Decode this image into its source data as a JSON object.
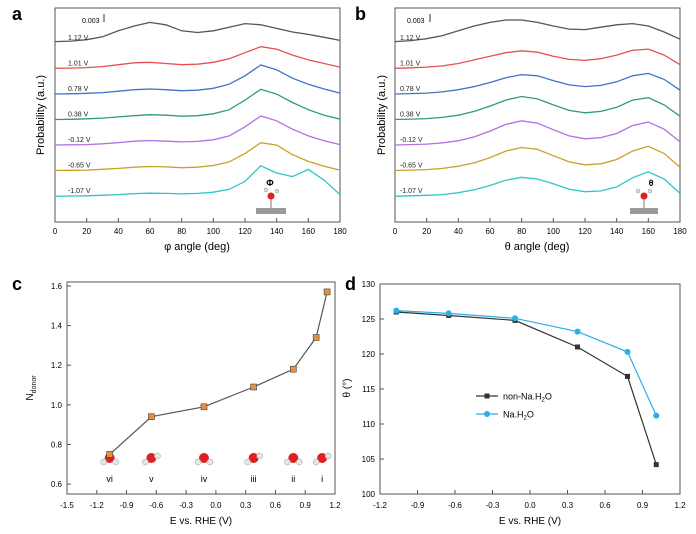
{
  "chart_data": [
    {
      "panel": "a",
      "type": "line",
      "title": "",
      "xlabel": "φ angle (deg)",
      "ylabel": "Probability (a.u.)",
      "xlim": [
        0,
        180
      ],
      "xticks": [
        "0",
        "20",
        "40",
        "60",
        "80",
        "100",
        "120",
        "140",
        "160",
        "180"
      ],
      "scale_bar_label": "0.003",
      "inset_symbol": "Φ",
      "x": [
        0,
        10,
        20,
        30,
        40,
        50,
        60,
        70,
        80,
        90,
        100,
        110,
        120,
        130,
        140,
        150,
        160,
        170,
        180
      ],
      "series": [
        {
          "name": "1.12 V",
          "color": "#555555",
          "values": [
            0.1,
            0.12,
            0.18,
            0.3,
            0.55,
            0.75,
            0.9,
            0.8,
            0.55,
            0.48,
            0.55,
            0.7,
            0.85,
            0.8,
            0.65,
            0.5,
            0.4,
            0.28,
            0.15
          ]
        },
        {
          "name": "1.01 V",
          "color": "#e8504f",
          "values": [
            0.05,
            0.06,
            0.08,
            0.12,
            0.2,
            0.28,
            0.3,
            0.25,
            0.2,
            0.22,
            0.3,
            0.45,
            0.7,
            0.95,
            0.85,
            0.6,
            0.4,
            0.25,
            0.1
          ]
        },
        {
          "name": "0.78 V",
          "color": "#3f72c9",
          "values": [
            0.04,
            0.05,
            0.07,
            0.1,
            0.16,
            0.22,
            0.25,
            0.22,
            0.18,
            0.2,
            0.28,
            0.45,
            0.8,
            1.25,
            1.05,
            0.7,
            0.45,
            0.25,
            0.08
          ]
        },
        {
          "name": "0.38 V",
          "color": "#2e9e6c",
          "values": [
            0.04,
            0.05,
            0.07,
            0.1,
            0.15,
            0.2,
            0.24,
            0.22,
            0.18,
            0.2,
            0.28,
            0.45,
            0.85,
            1.3,
            1.1,
            0.75,
            0.45,
            0.22,
            0.06
          ]
        },
        {
          "name": "-0.12 V",
          "color": "#b36ee0",
          "values": [
            0.04,
            0.05,
            0.06,
            0.09,
            0.14,
            0.2,
            0.23,
            0.2,
            0.17,
            0.19,
            0.26,
            0.42,
            0.8,
            1.25,
            1.05,
            0.7,
            0.42,
            0.22,
            0.06
          ]
        },
        {
          "name": "-0.65 V",
          "color": "#c9a12a",
          "values": [
            0.04,
            0.05,
            0.06,
            0.09,
            0.13,
            0.18,
            0.21,
            0.19,
            0.16,
            0.18,
            0.25,
            0.4,
            0.75,
            1.2,
            1.1,
            0.7,
            0.42,
            0.22,
            0.06
          ]
        },
        {
          "name": "-1.07 V",
          "color": "#2fc6c6",
          "values": [
            0.03,
            0.04,
            0.05,
            0.07,
            0.1,
            0.14,
            0.16,
            0.15,
            0.13,
            0.15,
            0.2,
            0.32,
            0.65,
            1.3,
            1.0,
            0.85,
            1.15,
            0.7,
            0.1
          ]
        }
      ]
    },
    {
      "panel": "b",
      "type": "line",
      "title": "",
      "xlabel": "θ angle (deg)",
      "ylabel": "Probability (a.u.)",
      "xlim": [
        0,
        180
      ],
      "xticks": [
        "0",
        "20",
        "40",
        "60",
        "80",
        "100",
        "120",
        "140",
        "160",
        "180"
      ],
      "scale_bar_label": "0.003",
      "inset_symbol": "θ",
      "x": [
        0,
        10,
        20,
        30,
        40,
        50,
        60,
        70,
        80,
        90,
        100,
        110,
        120,
        130,
        140,
        150,
        160,
        170,
        180
      ],
      "series": [
        {
          "name": "1.12 V",
          "color": "#555555",
          "values": [
            0.1,
            0.14,
            0.22,
            0.35,
            0.55,
            0.75,
            0.9,
            1.0,
            1.0,
            0.9,
            0.75,
            0.62,
            0.6,
            0.7,
            0.8,
            0.85,
            0.75,
            0.5,
            0.2
          ]
        },
        {
          "name": "1.01 V",
          "color": "#e8504f",
          "values": [
            0.05,
            0.07,
            0.1,
            0.15,
            0.25,
            0.4,
            0.55,
            0.7,
            0.78,
            0.72,
            0.55,
            0.42,
            0.38,
            0.45,
            0.6,
            0.8,
            0.85,
            0.6,
            0.2
          ]
        },
        {
          "name": "0.78 V",
          "color": "#3f72c9",
          "values": [
            0.04,
            0.06,
            0.08,
            0.13,
            0.22,
            0.35,
            0.52,
            0.72,
            0.85,
            0.8,
            0.6,
            0.42,
            0.35,
            0.4,
            0.55,
            0.8,
            0.9,
            0.65,
            0.2
          ]
        },
        {
          "name": "0.38 V",
          "color": "#2e9e6c",
          "values": [
            0.04,
            0.06,
            0.08,
            0.13,
            0.22,
            0.38,
            0.6,
            0.85,
            1.0,
            0.9,
            0.65,
            0.42,
            0.32,
            0.38,
            0.55,
            0.85,
            0.95,
            0.65,
            0.18
          ]
        },
        {
          "name": "-0.12 V",
          "color": "#b36ee0",
          "values": [
            0.04,
            0.06,
            0.08,
            0.13,
            0.22,
            0.38,
            0.62,
            0.9,
            1.05,
            0.95,
            0.68,
            0.42,
            0.3,
            0.35,
            0.52,
            0.85,
            1.0,
            0.7,
            0.18
          ]
        },
        {
          "name": "-0.65 V",
          "color": "#c9a12a",
          "values": [
            0.04,
            0.06,
            0.08,
            0.13,
            0.22,
            0.36,
            0.58,
            0.85,
            1.0,
            0.92,
            0.66,
            0.4,
            0.28,
            0.32,
            0.5,
            0.85,
            1.05,
            0.75,
            0.18
          ]
        },
        {
          "name": "-1.07 V",
          "color": "#2fc6c6",
          "values": [
            0.03,
            0.05,
            0.07,
            0.1,
            0.18,
            0.3,
            0.48,
            0.7,
            0.82,
            0.75,
            0.55,
            0.32,
            0.22,
            0.25,
            0.42,
            0.8,
            1.05,
            0.75,
            0.15
          ]
        }
      ]
    },
    {
      "panel": "c",
      "type": "line",
      "xlabel": "E vs. RHE (V)",
      "ylabel": "N_donor",
      "ylabel_main": "N",
      "ylabel_sub": "donor",
      "xlim": [
        -1.5,
        1.2
      ],
      "ylim": [
        0.55,
        1.62
      ],
      "xticks": [
        -1.5,
        -1.2,
        -0.9,
        -0.6,
        -0.3,
        0.0,
        0.3,
        0.6,
        0.9,
        1.2
      ],
      "xtick_labels": [
        "-1.5",
        "-1.2",
        "-0.9",
        "-0.6",
        "-0.3",
        "0.0",
        "0.3",
        "0.6",
        "0.9",
        "1.2"
      ],
      "yticks": [
        0.6,
        0.8,
        1.0,
        1.2,
        1.4,
        1.6
      ],
      "ytick_labels": [
        "0.6",
        "0.8",
        "1.0",
        "1.2",
        "1.4",
        "1.6"
      ],
      "marker_color": "#e8913a",
      "x": [
        -1.07,
        -0.65,
        -0.12,
        0.38,
        0.78,
        1.01,
        1.12
      ],
      "y": [
        0.75,
        0.94,
        0.99,
        1.09,
        1.18,
        1.34,
        1.57
      ],
      "molecule_labels": [
        {
          "label": "vi",
          "x": -1.07
        },
        {
          "label": "v",
          "x": -0.65
        },
        {
          "label": "iv",
          "x": -0.12
        },
        {
          "label": "iii",
          "x": 0.38
        },
        {
          "label": "ii",
          "x": 0.78
        },
        {
          "label": "i",
          "x": 1.07
        }
      ]
    },
    {
      "panel": "d",
      "type": "line",
      "xlabel": "E vs. RHE (V)",
      "ylabel": "θ (°)",
      "xlim": [
        -1.2,
        1.2
      ],
      "ylim": [
        100,
        130
      ],
      "xticks": [
        -1.2,
        -0.9,
        -0.6,
        -0.3,
        0.0,
        0.3,
        0.6,
        0.9,
        1.2
      ],
      "xtick_labels": [
        "-1.2",
        "-0.9",
        "-0.6",
        "-0.3",
        "0.0",
        "0.3",
        "0.6",
        "0.9",
        "1.2"
      ],
      "yticks": [
        100,
        105,
        110,
        115,
        120,
        125,
        130
      ],
      "ytick_labels": [
        "100",
        "105",
        "110",
        "115",
        "120",
        "125",
        "130"
      ],
      "x": [
        -1.07,
        -0.65,
        -0.12,
        0.38,
        0.78,
        1.01
      ],
      "series": [
        {
          "name": "non-Na.H2O",
          "legend_text": "non-Na.H",
          "legend_sub": "2",
          "legend_tail": "O",
          "color": "#333333",
          "values": [
            126.0,
            125.5,
            124.8,
            121.0,
            116.8,
            104.2
          ]
        },
        {
          "name": "Na.H2O",
          "legend_text": "Na.H",
          "legend_sub": "2",
          "legend_tail": "O",
          "color": "#2eaee8",
          "values": [
            126.2,
            125.8,
            125.1,
            123.2,
            120.3,
            111.2
          ]
        }
      ]
    }
  ]
}
